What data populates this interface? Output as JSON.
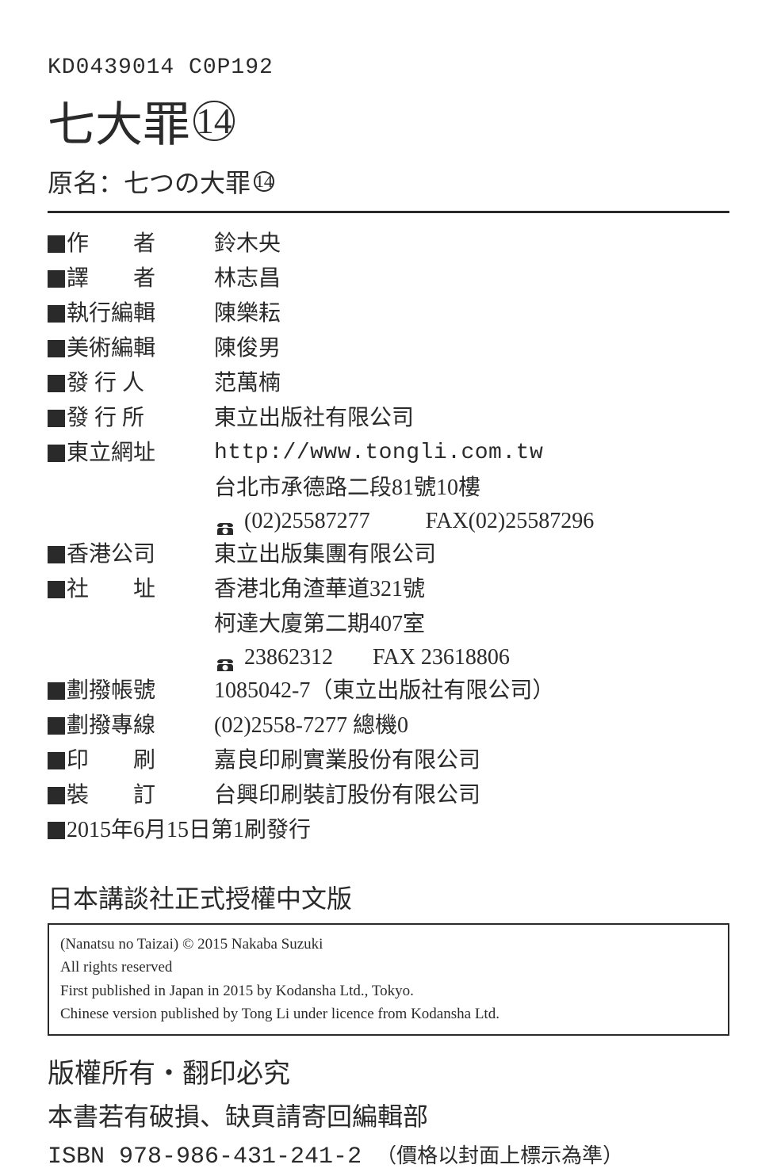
{
  "header": {
    "code": "KD0439014 C0P192",
    "title_text": "七大罪",
    "title_number": "14",
    "subtitle_prefix": "原名：七つの大罪",
    "subtitle_number": "14"
  },
  "credits": [
    {
      "label": "作　　者",
      "value": "鈴木央",
      "justify": "justify2"
    },
    {
      "label": "譯　　者",
      "value": "林志昌",
      "justify": "justify2"
    },
    {
      "label": "執行編輯",
      "value": "陳樂耘",
      "justify": ""
    },
    {
      "label": "美術編輯",
      "value": "陳俊男",
      "justify": ""
    },
    {
      "label": "發 行 人",
      "value": "范萬楠",
      "justify": "justify3"
    },
    {
      "label": "發 行 所",
      "value": "東立出版社有限公司",
      "justify": "justify3"
    },
    {
      "label": "東立網址",
      "value": "http://www.tongli.com.tw",
      "justify": "",
      "mono": true
    }
  ],
  "tongli_address": "台北市承德路二段81號10樓",
  "tongli_phone": "(02)25587277",
  "tongli_fax": "FAX(02)25587296",
  "credits2": [
    {
      "label": "香港公司",
      "value": "東立出版集團有限公司",
      "justify": ""
    },
    {
      "label": "社　　址",
      "value": "香港北角渣華道321號",
      "justify": "justify2"
    }
  ],
  "hk_address2": "柯達大廈第二期407室",
  "hk_phone": "23862312",
  "hk_fax": "FAX 23618806",
  "credits3": [
    {
      "label": "劃撥帳號",
      "value": "1085042-7（東立出版社有限公司）",
      "justify": ""
    },
    {
      "label": "劃撥專線",
      "value": "(02)2558-7277 總機0",
      "justify": ""
    },
    {
      "label": "印　　刷",
      "value": "嘉良印刷實業股份有限公司",
      "justify": "justify2"
    },
    {
      "label": "裝　　訂",
      "value": "台興印刷裝訂股份有限公司",
      "justify": "justify2"
    }
  ],
  "pub_date": "2015年6月15日第1刷發行",
  "auth_line": "日本講談社正式授權中文版",
  "copyright": {
    "line1": "(Nanatsu no Taizai) © 2015 Nakaba Suzuki",
    "line2": "All rights reserved",
    "line3": "First published in Japan in 2015 by Kodansha Ltd., Tokyo.",
    "line4": "Chinese version published by Tong Li under licence from Kodansha Ltd."
  },
  "footer": {
    "rights": "版權所有・翻印必究",
    "damage": "本書若有破損、缺頁請寄回編輯部",
    "isbn_label": "ISBN",
    "isbn": "978-986-431-241-2",
    "isbn_note": "（價格以封面上標示為準）"
  },
  "colors": {
    "text": "#2a2a2a",
    "bg": "#ffffff"
  }
}
